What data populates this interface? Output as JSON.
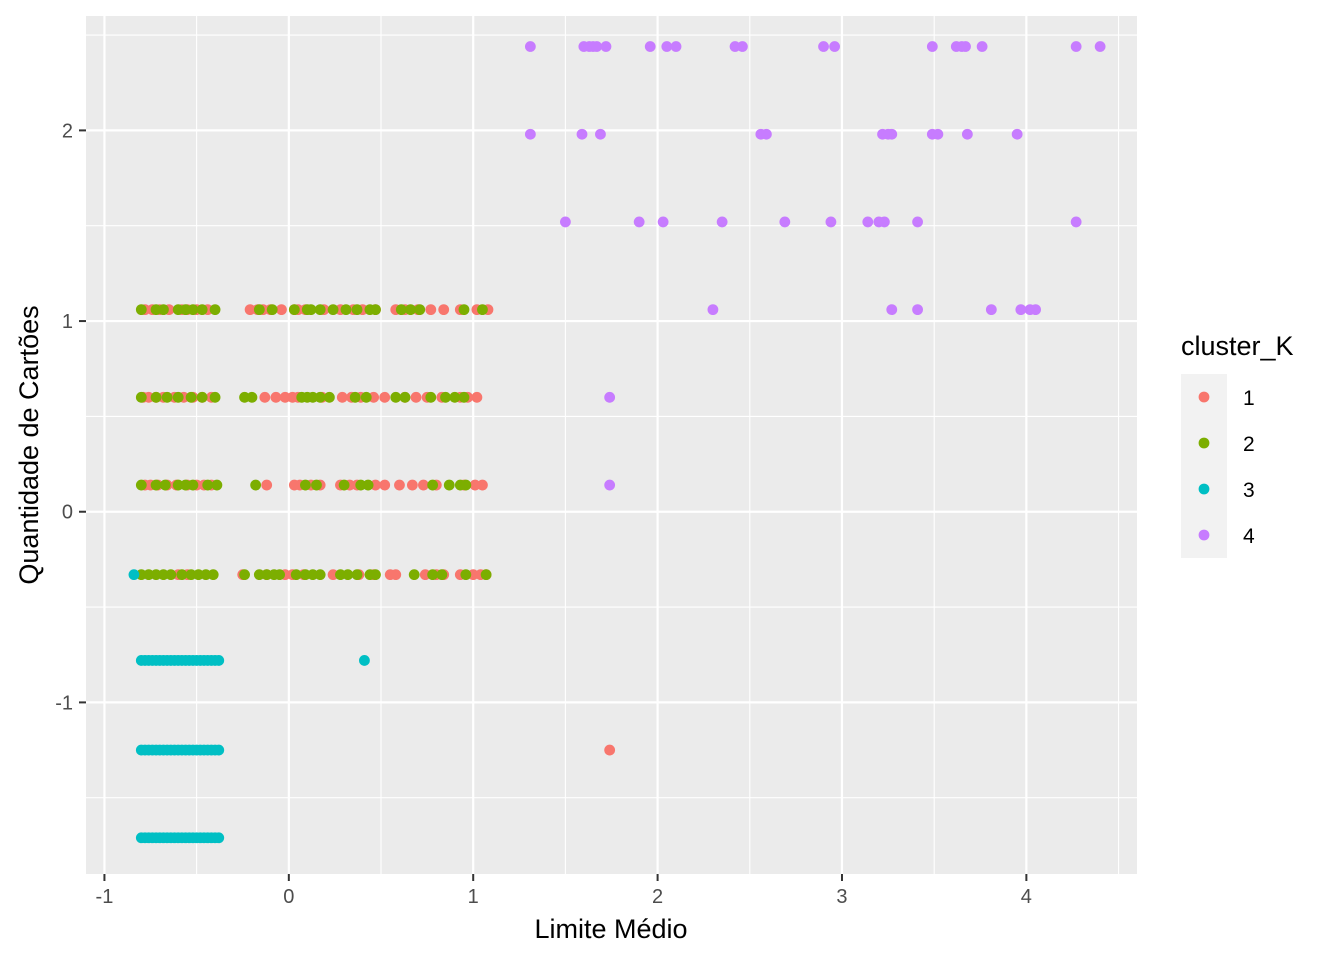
{
  "chart_data": {
    "type": "scatter",
    "title": "",
    "xlabel": "Limite Médio",
    "ylabel": "Quantidade de Cartões",
    "xlim": [
      -1.1,
      4.6
    ],
    "ylim": [
      -1.9,
      2.6
    ],
    "x_ticks": [
      -1,
      0,
      1,
      2,
      3,
      4
    ],
    "y_ticks": [
      -1,
      0,
      1,
      2
    ],
    "grid": true,
    "legend": {
      "title": "cluster_K",
      "position": "right",
      "entries": [
        {
          "label": "1",
          "color": "#F8766D"
        },
        {
          "label": "2",
          "color": "#7CAE00"
        },
        {
          "label": "3",
          "color": "#00BFC4"
        },
        {
          "label": "4",
          "color": "#C77CFF"
        }
      ]
    },
    "series": [
      {
        "name": "1",
        "color": "#F8766D",
        "rows": [
          {
            "y": 1.06,
            "x": [
              -0.78,
              -0.74,
              -0.7,
              -0.65,
              -0.58,
              -0.55,
              -0.5,
              -0.44,
              -0.21,
              -0.17,
              -0.14,
              -0.1,
              -0.04,
              0.03,
              0.05,
              0.09,
              0.19,
              0.28,
              0.35,
              0.4,
              0.47,
              0.58,
              0.63,
              0.7,
              0.77,
              0.84,
              0.93,
              1.02,
              1.08
            ]
          },
          {
            "y": 0.6,
            "x": [
              -0.79,
              -0.76,
              -0.72,
              -0.68,
              -0.62,
              -0.57,
              -0.52,
              -0.47,
              -0.42,
              -0.13,
              -0.07,
              -0.02,
              0.02,
              0.05,
              0.18,
              0.29,
              0.34,
              0.39,
              0.46,
              0.52,
              0.63,
              0.69,
              0.75,
              0.83,
              0.93,
              0.97,
              1.02
            ]
          },
          {
            "y": 0.14,
            "x": [
              -0.78,
              -0.75,
              -0.71,
              -0.66,
              -0.61,
              -0.55,
              -0.5,
              -0.46,
              -0.42,
              -0.12,
              0.03,
              0.06,
              0.12,
              0.17,
              0.28,
              0.33,
              0.37,
              0.47,
              0.52,
              0.6,
              0.67,
              0.73,
              0.8,
              0.95,
              1.01,
              1.05
            ]
          },
          {
            "y": -0.33,
            "x": [
              -0.6,
              -0.55,
              -0.25,
              -0.12,
              -0.02,
              0.02,
              0.08,
              0.24,
              0.38,
              0.46,
              0.55,
              0.58,
              0.74,
              0.8,
              0.84,
              0.93,
              1,
              1.04,
              1.07
            ]
          },
          {
            "y": -1.25,
            "x": [
              1.74
            ]
          }
        ]
      },
      {
        "name": "2",
        "color": "#7CAE00",
        "rows": [
          {
            "y": 1.06,
            "x": [
              -0.8,
              -0.72,
              -0.68,
              -0.6,
              -0.56,
              -0.52,
              -0.47,
              -0.4,
              -0.16,
              -0.09,
              0.03,
              0.1,
              0.12,
              0.17,
              0.24,
              0.31,
              0.37,
              0.44,
              0.47,
              0.61,
              0.66,
              0.71,
              0.95,
              1.05
            ]
          },
          {
            "y": 0.6,
            "x": [
              -0.8,
              -0.72,
              -0.66,
              -0.6,
              -0.53,
              -0.47,
              -0.4,
              -0.24,
              -0.2,
              0.07,
              0.1,
              0.13,
              0.17,
              0.22,
              0.36,
              0.42,
              0.58,
              0.63,
              0.77,
              0.85,
              0.9,
              0.95
            ]
          },
          {
            "y": 0.14,
            "x": [
              -0.8,
              -0.72,
              -0.67,
              -0.6,
              -0.56,
              -0.52,
              -0.44,
              -0.39,
              -0.18,
              0.09,
              0.15,
              0.3,
              0.39,
              0.43,
              0.78,
              0.87,
              0.93,
              0.96
            ]
          },
          {
            "y": -0.33,
            "x": [
              -0.8,
              -0.76,
              -0.72,
              -0.68,
              -0.64,
              -0.58,
              -0.53,
              -0.49,
              -0.45,
              -0.41,
              -0.24,
              -0.16,
              -0.12,
              -0.08,
              -0.05,
              0.04,
              0.09,
              0.13,
              0.17,
              0.28,
              0.32,
              0.37,
              0.44,
              0.47,
              0.68,
              0.78,
              0.83,
              0.96,
              1.07
            ]
          }
        ]
      },
      {
        "name": "3",
        "color": "#00BFC4",
        "rows": [
          {
            "y": -0.33,
            "x": [
              -0.84
            ]
          },
          {
            "y": -0.78,
            "x": [
              -0.8,
              -0.78,
              -0.76,
              -0.74,
              -0.72,
              -0.7,
              -0.68,
              -0.66,
              -0.64,
              -0.62,
              -0.6,
              -0.58,
              -0.56,
              -0.54,
              -0.52,
              -0.5,
              -0.48,
              -0.46,
              -0.44,
              -0.42,
              -0.4,
              -0.38,
              0.41
            ]
          },
          {
            "y": -1.25,
            "x": [
              -0.8,
              -0.78,
              -0.76,
              -0.74,
              -0.72,
              -0.7,
              -0.68,
              -0.66,
              -0.64,
              -0.62,
              -0.6,
              -0.58,
              -0.56,
              -0.54,
              -0.52,
              -0.5,
              -0.48,
              -0.46,
              -0.44,
              -0.42,
              -0.4,
              -0.38
            ]
          },
          {
            "y": -1.71,
            "x": [
              -0.8,
              -0.78,
              -0.76,
              -0.74,
              -0.72,
              -0.7,
              -0.68,
              -0.66,
              -0.64,
              -0.62,
              -0.6,
              -0.58,
              -0.56,
              -0.54,
              -0.52,
              -0.5,
              -0.48,
              -0.46,
              -0.44,
              -0.42,
              -0.4,
              -0.38
            ]
          }
        ]
      },
      {
        "name": "4",
        "color": "#C77CFF",
        "rows": [
          {
            "y": 2.44,
            "x": [
              1.31,
              1.6,
              1.63,
              1.65,
              1.67,
              1.72,
              1.96,
              2.05,
              2.1,
              2.42,
              2.46,
              2.9,
              2.96,
              3.49,
              3.62,
              3.65,
              3.67,
              3.76,
              4.27,
              4.4
            ]
          },
          {
            "y": 1.98,
            "x": [
              1.31,
              1.59,
              1.69,
              2.56,
              2.59,
              3.22,
              3.25,
              3.27,
              3.49,
              3.52,
              3.68,
              3.95
            ]
          },
          {
            "y": 1.52,
            "x": [
              1.5,
              1.9,
              2.03,
              2.35,
              2.69,
              2.94,
              3.14,
              3.2,
              3.23,
              3.41,
              4.27
            ]
          },
          {
            "y": 1.06,
            "x": [
              2.3,
              3.27,
              3.41,
              3.81,
              3.97,
              4.02,
              4.05
            ]
          },
          {
            "y": 0.6,
            "x": [
              1.74
            ]
          },
          {
            "y": 0.14,
            "x": [
              1.74
            ]
          }
        ]
      }
    ]
  }
}
